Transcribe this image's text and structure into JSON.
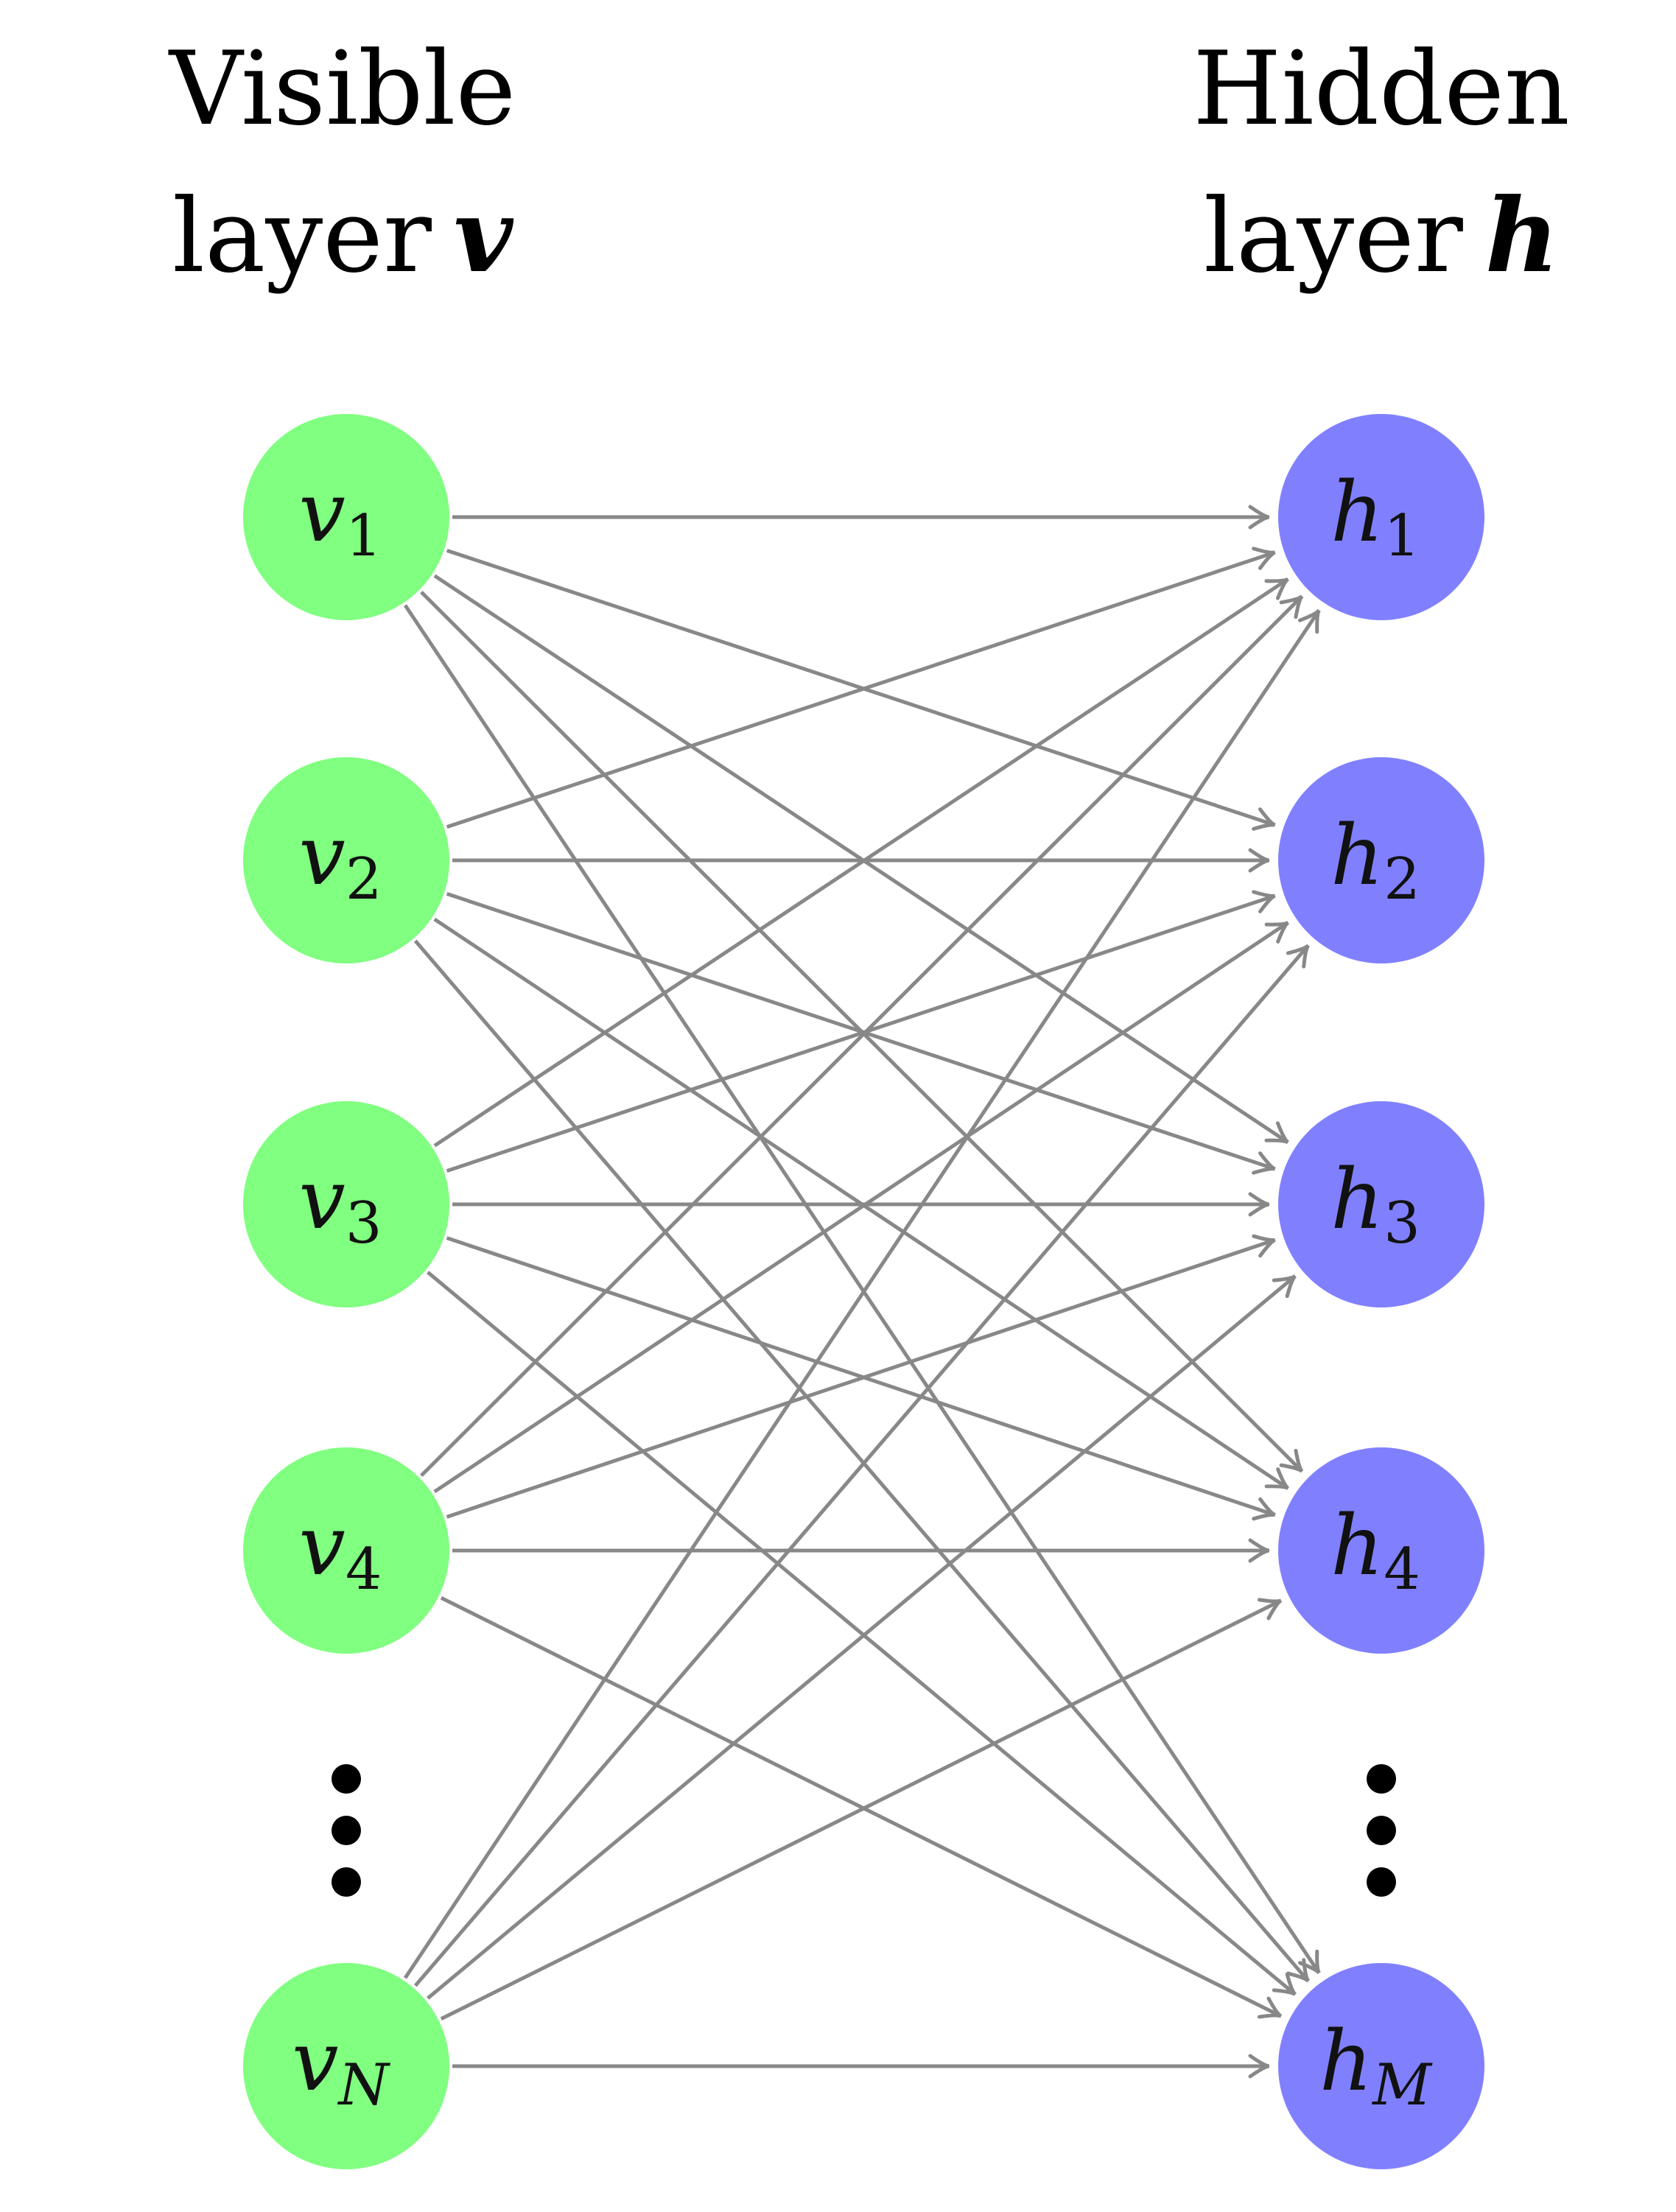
{
  "visible_layer": {
    "title_line1": "Visible",
    "title_line2": "layer",
    "symbol": "v",
    "color": "#80ff80",
    "nodes": [
      {
        "name": "v",
        "sub": "1"
      },
      {
        "name": "v",
        "sub": "2"
      },
      {
        "name": "v",
        "sub": "3"
      },
      {
        "name": "v",
        "sub": "4"
      },
      {
        "name": "v",
        "sub": "N"
      }
    ]
  },
  "hidden_layer": {
    "title_line1": "Hidden",
    "title_line2": "layer",
    "symbol": "h",
    "color": "#8080ff",
    "nodes": [
      {
        "name": "h",
        "sub": "1"
      },
      {
        "name": "h",
        "sub": "2"
      },
      {
        "name": "h",
        "sub": "3"
      },
      {
        "name": "h",
        "sub": "4"
      },
      {
        "name": "h",
        "sub": "M"
      }
    ]
  },
  "ellipsis_after_node_index": 3,
  "connections": "fully-connected",
  "edge_direction": "visible-to-hidden",
  "edge_color": "#888888"
}
